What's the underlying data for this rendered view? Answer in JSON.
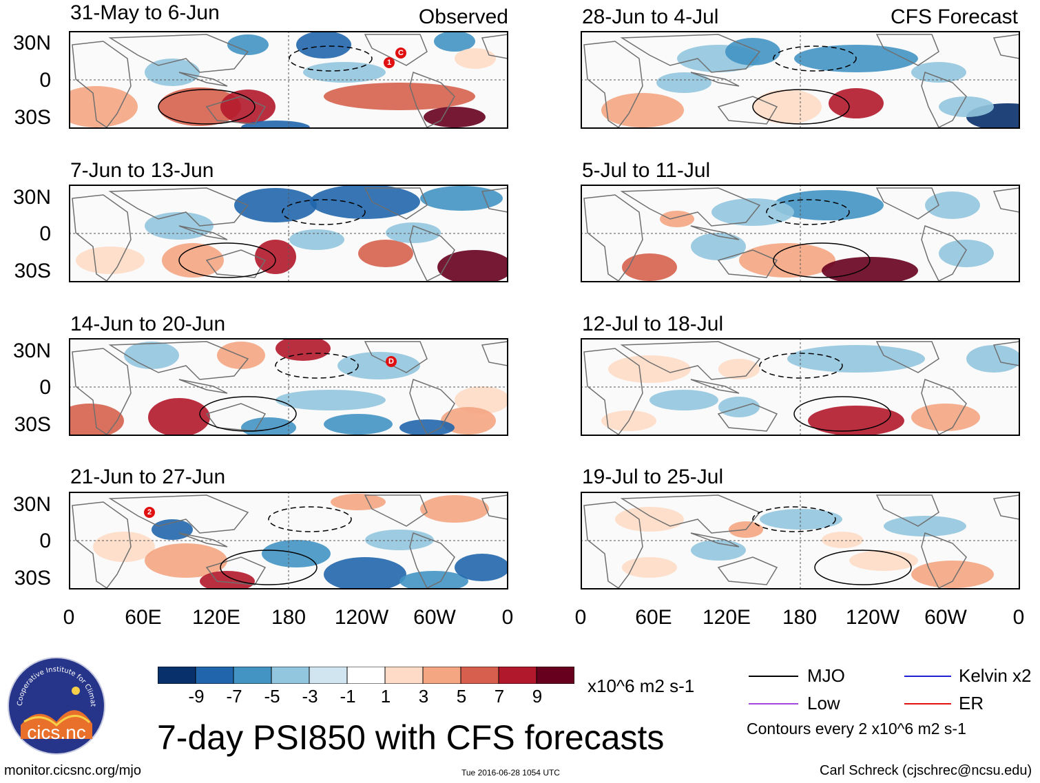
{
  "figure": {
    "title": "7-day PSI850 with CFS forecasts",
    "observed_label": "Observed",
    "forecast_label": "CFS Forecast",
    "units": "x10^6 m2 s-1",
    "contour_note": "Contours every 2 x10^6 m2 s-1",
    "url": "monitor.cicsnc.org/mjo",
    "timestamp": "Tue 2016-06-28 1054 UTC",
    "author": "Carl Schreck (cjschrec@ncsu.edu)"
  },
  "logo": {
    "text": "cics.nc",
    "ring_text": "Cooperative Institute for Climate and Satellites"
  },
  "panels": {
    "observed": [
      {
        "period": "31-May to 6-Jun"
      },
      {
        "period": "7-Jun to 13-Jun"
      },
      {
        "period": "14-Jun to 20-Jun"
      },
      {
        "period": "21-Jun to 27-Jun"
      }
    ],
    "forecast": [
      {
        "period": "28-Jun to 4-Jul"
      },
      {
        "period": "5-Jul to 11-Jul"
      },
      {
        "period": "12-Jul to 18-Jul"
      },
      {
        "period": "19-Jul to 25-Jul"
      }
    ]
  },
  "axes": {
    "lat_ticks": [
      "30N",
      "0",
      "30S"
    ],
    "lon_ticks": [
      "0",
      "60E",
      "120E",
      "180",
      "120W",
      "60W",
      "0"
    ]
  },
  "colorbar": {
    "colors": [
      "#08306b",
      "#2166ac",
      "#4393c3",
      "#92c5de",
      "#d1e5f0",
      "#ffffff",
      "#fddbc7",
      "#f4a582",
      "#d6604d",
      "#b2182b",
      "#67001f"
    ],
    "labels": [
      "-9",
      "-7",
      "-5",
      "-3",
      "-1",
      "1",
      "3",
      "5",
      "7",
      "9"
    ]
  },
  "legend": {
    "items": [
      {
        "label": "MJO",
        "color": "#000000"
      },
      {
        "label": "Kelvin x2",
        "color": "#1f1fd6"
      },
      {
        "label": "Low",
        "color": "#a347e0"
      },
      {
        "label": "ER",
        "color": "#e01010"
      }
    ]
  },
  "storm_markers": [
    {
      "label": "1"
    },
    {
      "label": "C"
    },
    {
      "label": "D"
    },
    {
      "label": "2"
    }
  ]
}
